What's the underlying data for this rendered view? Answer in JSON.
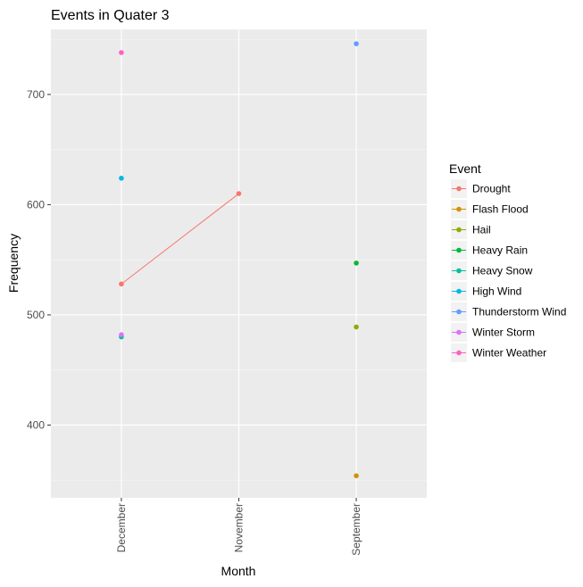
{
  "chart_data": {
    "type": "line",
    "title": "Events in Quater 3",
    "xlabel": "Month",
    "ylabel": "Frequency",
    "categories": [
      "December",
      "November",
      "September"
    ],
    "yticks": [
      400,
      500,
      600,
      700
    ],
    "ylim": [
      334,
      759
    ],
    "grid": true,
    "legend": {
      "title": "Event",
      "position": "right",
      "items": [
        {
          "name": "Drought",
          "color": "#F8766D"
        },
        {
          "name": "Flash Flood",
          "color": "#D39200"
        },
        {
          "name": "Hail",
          "color": "#93AA00"
        },
        {
          "name": "Heavy Rain",
          "color": "#00BA38"
        },
        {
          "name": "Heavy Snow",
          "color": "#00C19F"
        },
        {
          "name": "High Wind",
          "color": "#00B9E3"
        },
        {
          "name": "Thunderstorm Wind",
          "color": "#619CFF"
        },
        {
          "name": "Winter Storm",
          "color": "#DB72FB"
        },
        {
          "name": "Winter Weather",
          "color": "#FF61C3"
        }
      ]
    },
    "series": [
      {
        "name": "Drought",
        "color": "#F8766D",
        "points": [
          {
            "x": "December",
            "y": 528
          },
          {
            "x": "November",
            "y": 610
          }
        ]
      },
      {
        "name": "Flash Flood",
        "color": "#D39200",
        "points": [
          {
            "x": "September",
            "y": 354
          }
        ]
      },
      {
        "name": "Hail",
        "color": "#93AA00",
        "points": [
          {
            "x": "September",
            "y": 489
          }
        ]
      },
      {
        "name": "Heavy Rain",
        "color": "#00BA38",
        "points": [
          {
            "x": "September",
            "y": 547
          }
        ]
      },
      {
        "name": "Heavy Snow",
        "color": "#00C19F",
        "points": [
          {
            "x": "December",
            "y": 480
          }
        ]
      },
      {
        "name": "High Wind",
        "color": "#00B9E3",
        "points": [
          {
            "x": "December",
            "y": 624
          }
        ]
      },
      {
        "name": "Thunderstorm Wind",
        "color": "#619CFF",
        "points": [
          {
            "x": "September",
            "y": 746
          }
        ]
      },
      {
        "name": "Winter Storm",
        "color": "#DB72FB",
        "points": [
          {
            "x": "December",
            "y": 482
          }
        ]
      },
      {
        "name": "Winter Weather",
        "color": "#FF61C3",
        "points": [
          {
            "x": "December",
            "y": 738
          }
        ]
      }
    ]
  }
}
